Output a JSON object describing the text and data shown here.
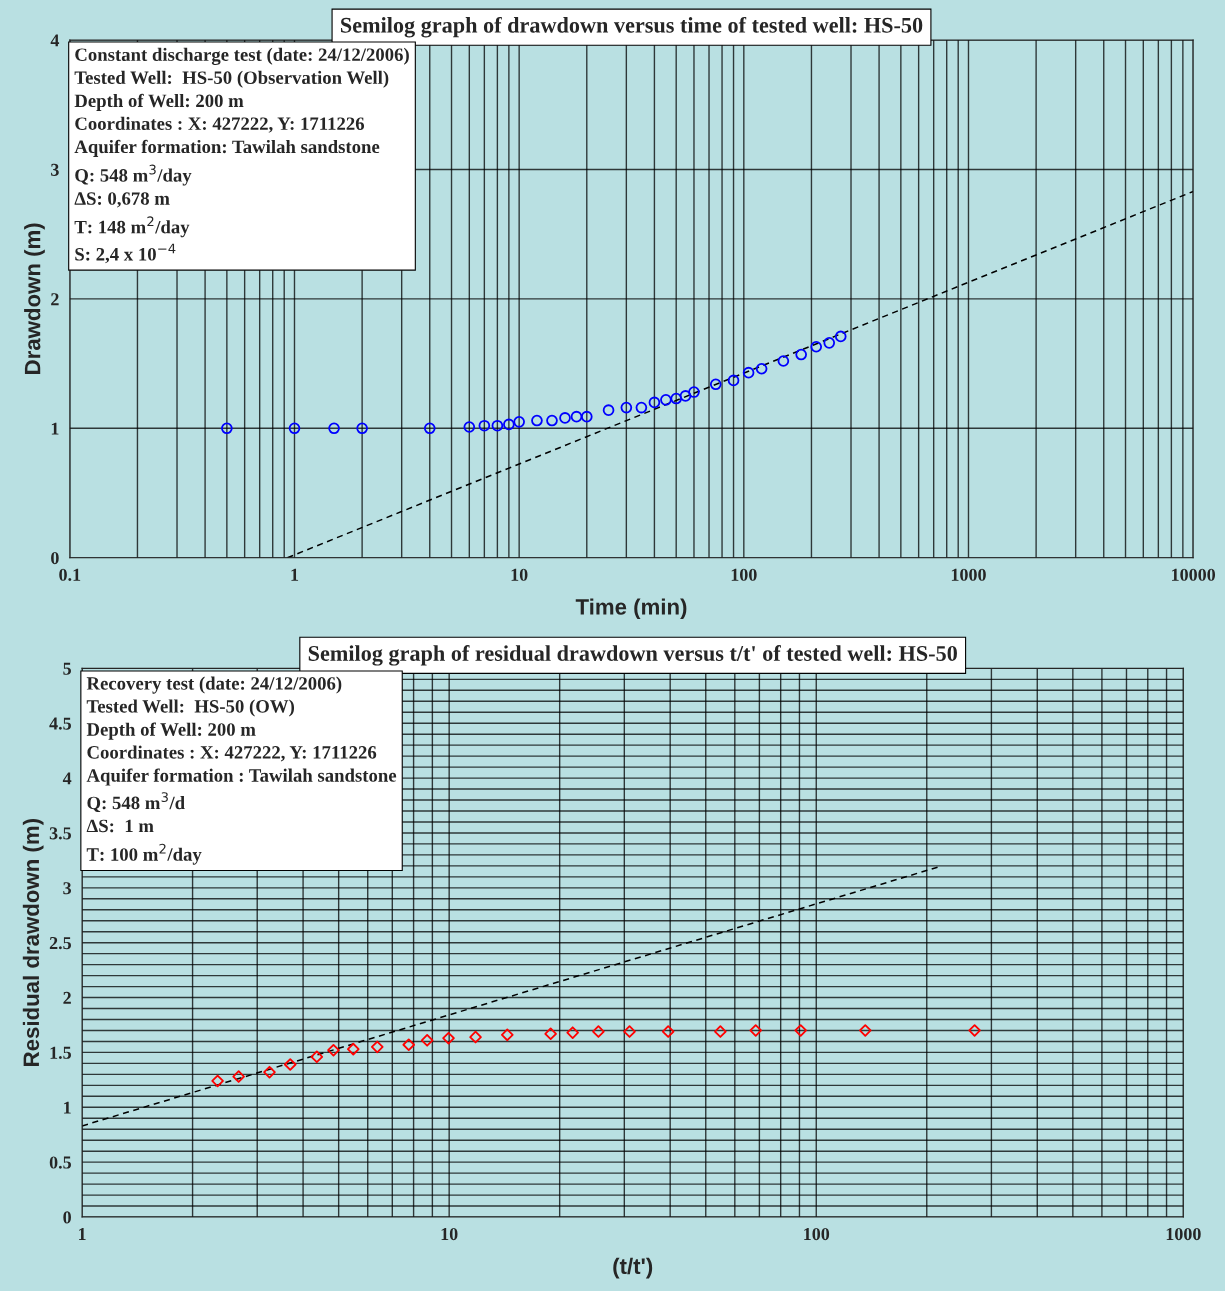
{
  "chart_data": [
    {
      "type": "scatter",
      "title": "Semilog graph of drawdown versus time of tested well: HS-50",
      "xlabel": "Time (min)",
      "ylabel": "Drawdown (m)",
      "annotations": [
        "Constant discharge test (date: 24/12/2006)",
        "Tested Well:  HS-50 (Observation Well)",
        "Depth of Well: 200 m",
        "Coordinates : X: 427222, Y: 1711226",
        "Aquifer formation: Tawilah sandstone",
        "Q: 548 m$^{3}$/day",
        "ΔS: 0,678 m",
        "T: 148 m$^{2}$/day",
        "S: 2,4 x 10$^{−4}$"
      ],
      "log": "x",
      "grid": true,
      "xlim": [
        0.1,
        10000
      ],
      "ylim": [
        0,
        4
      ],
      "yticks": [
        0,
        1,
        2,
        3,
        4
      ],
      "xticks": [
        0.1,
        {
          "value": 0.2,
          "label": null
        },
        {
          "value": 0.3,
          "label": null
        },
        {
          "value": 0.4,
          "label": null
        },
        {
          "value": 0.5,
          "label": null
        },
        {
          "value": 0.6,
          "label": null
        },
        {
          "value": 0.7,
          "label": null
        },
        {
          "value": 0.8,
          "label": null
        },
        {
          "value": 0.9,
          "label": null
        },
        1,
        {
          "value": 2,
          "label": null
        },
        {
          "value": 3,
          "label": null
        },
        {
          "value": 4,
          "label": null
        },
        {
          "value": 5,
          "label": null
        },
        {
          "value": 6,
          "label": null
        },
        {
          "value": 7,
          "label": null
        },
        {
          "value": 8,
          "label": null
        },
        {
          "value": 9,
          "label": null
        },
        10,
        {
          "value": 20,
          "label": null
        },
        {
          "value": 30,
          "label": null
        },
        {
          "value": 40,
          "label": null
        },
        {
          "value": 50,
          "label": null
        },
        {
          "value": 60,
          "label": null
        },
        {
          "value": 70,
          "label": null
        },
        {
          "value": 80,
          "label": null
        },
        {
          "value": 90,
          "label": null
        },
        100,
        {
          "value": 200,
          "label": null
        },
        {
          "value": 300,
          "label": null
        },
        {
          "value": 400,
          "label": null
        },
        {
          "value": 500,
          "label": null
        },
        {
          "value": 600,
          "label": null
        },
        {
          "value": 700,
          "label": null
        },
        {
          "value": 800,
          "label": null
        },
        {
          "value": 900,
          "label": null
        },
        1000,
        {
          "value": 2000,
          "label": null
        },
        {
          "value": 3000,
          "label": null
        },
        {
          "value": 4000,
          "label": null
        },
        {
          "value": 5000,
          "label": null
        },
        {
          "value": 6000,
          "label": null
        },
        {
          "value": 7000,
          "label": null
        },
        {
          "value": 8000,
          "label": null
        },
        {
          "value": 9000,
          "label": null
        },
        10000
      ],
      "series": [
        {
          "color": "#0000ff",
          "marker": "circle",
          "x": [
            0.5,
            1,
            1.5,
            2,
            4,
            6,
            7,
            8,
            9,
            10,
            12,
            14,
            16,
            18,
            20,
            25,
            30,
            35,
            40,
            45,
            50,
            55,
            60,
            75,
            90,
            105,
            120,
            150,
            180,
            210,
            240,
            270
          ],
          "values": [
            1.0,
            1.0,
            1.0,
            1.0,
            1.0,
            1.01,
            1.02,
            1.02,
            1.03,
            1.05,
            1.06,
            1.06,
            1.08,
            1.09,
            1.09,
            1.14,
            1.16,
            1.16,
            1.2,
            1.22,
            1.23,
            1.25,
            1.28,
            1.34,
            1.37,
            1.43,
            1.46,
            1.52,
            1.57,
            1.63,
            1.66,
            1.71
          ]
        },
        {
          "type": "line",
          "color": "#000000",
          "line_style": "dashed",
          "x": [
            0.93,
            10000
          ],
          "values": [
            0,
            2.83
          ]
        }
      ]
    },
    {
      "type": "scatter",
      "title": "Semilog graph of residual drawdown versus t/t' of tested well: HS-50",
      "xlabel": "(t/t')",
      "ylabel": "Residual drawdown (m)",
      "annotations": [
        "Recovery test (date: 24/12/2006)",
        "Tested Well:  HS-50 (OW)",
        "Depth of Well: 200 m",
        "Coordinates : X: 427222, Y: 1711226",
        "Aquifer formation : Tawilah sandstone",
        "Q: 548 m$^{3}$/d",
        "ΔS:  1 m",
        "T: 100 m$^{2}$/day"
      ],
      "log": "x",
      "grid": true,
      "xlim": [
        1,
        1000
      ],
      "ylim": [
        0,
        5
      ],
      "yticks": [
        0,
        {
          "value": 0.1,
          "label": null
        },
        {
          "value": 0.2,
          "label": null
        },
        {
          "value": 0.3,
          "label": null
        },
        {
          "value": 0.4,
          "label": null
        },
        0.5,
        {
          "value": 0.6,
          "label": null
        },
        {
          "value": 0.7,
          "label": null
        },
        {
          "value": 0.8,
          "label": null
        },
        {
          "value": 0.9,
          "label": null
        },
        1,
        {
          "value": 1.1,
          "label": null
        },
        {
          "value": 1.2,
          "label": null
        },
        {
          "value": 1.3,
          "label": null
        },
        {
          "value": 1.4,
          "label": null
        },
        1.5,
        {
          "value": 1.6,
          "label": null
        },
        {
          "value": 1.7,
          "label": null
        },
        {
          "value": 1.8,
          "label": null
        },
        {
          "value": 1.9,
          "label": null
        },
        2,
        {
          "value": 2.1,
          "label": null
        },
        {
          "value": 2.2,
          "label": null
        },
        {
          "value": 2.3,
          "label": null
        },
        {
          "value": 2.4,
          "label": null
        },
        2.5,
        {
          "value": 2.6,
          "label": null
        },
        {
          "value": 2.7,
          "label": null
        },
        {
          "value": 2.8,
          "label": null
        },
        {
          "value": 2.9,
          "label": null
        },
        3,
        {
          "value": 3.1,
          "label": null
        },
        {
          "value": 3.2,
          "label": null
        },
        {
          "value": 3.3,
          "label": null
        },
        {
          "value": 3.4,
          "label": null
        },
        3.5,
        {
          "value": 3.6,
          "label": null
        },
        {
          "value": 3.7,
          "label": null
        },
        {
          "value": 3.8,
          "label": null
        },
        {
          "value": 3.9,
          "label": null
        },
        4,
        {
          "value": 4.1,
          "label": null
        },
        {
          "value": 4.2,
          "label": null
        },
        {
          "value": 4.3,
          "label": null
        },
        {
          "value": 4.4,
          "label": null
        },
        4.5,
        {
          "value": 4.6,
          "label": null
        },
        {
          "value": 4.7,
          "label": null
        },
        {
          "value": 4.8,
          "label": null
        },
        {
          "value": 4.9,
          "label": null
        },
        5
      ],
      "xticks": [
        1,
        {
          "value": 2,
          "label": null
        },
        {
          "value": 3,
          "label": null
        },
        {
          "value": 4,
          "label": null
        },
        {
          "value": 5,
          "label": null
        },
        {
          "value": 6,
          "label": null
        },
        {
          "value": 7,
          "label": null
        },
        {
          "value": 8,
          "label": null
        },
        {
          "value": 9,
          "label": null
        },
        10,
        {
          "value": 20,
          "label": null
        },
        {
          "value": 30,
          "label": null
        },
        {
          "value": 40,
          "label": null
        },
        {
          "value": 50,
          "label": null
        },
        {
          "value": 60,
          "label": null
        },
        {
          "value": 70,
          "label": null
        },
        {
          "value": 80,
          "label": null
        },
        {
          "value": 90,
          "label": null
        },
        100,
        {
          "value": 200,
          "label": null
        },
        {
          "value": 300,
          "label": null
        },
        {
          "value": 400,
          "label": null
        },
        {
          "value": 500,
          "label": null
        },
        {
          "value": 600,
          "label": null
        },
        {
          "value": 700,
          "label": null
        },
        {
          "value": 800,
          "label": null
        },
        {
          "value": 900,
          "label": null
        },
        1000
      ],
      "series": [
        {
          "color": "#ff0000",
          "marker": "diamond",
          "x": [
            2.34,
            2.67,
            3.24,
            3.69,
            4.36,
            4.84,
            5.48,
            6.37,
            7.76,
            8.71,
            9.96,
            11.8,
            14.4,
            18.9,
            21.7,
            25.5,
            31,
            39.5,
            54.8,
            68.4,
            90.7,
            136,
            270
          ],
          "values": [
            1.24,
            1.28,
            1.32,
            1.39,
            1.46,
            1.52,
            1.53,
            1.55,
            1.57,
            1.61,
            1.63,
            1.64,
            1.66,
            1.67,
            1.68,
            1.69,
            1.69,
            1.69,
            1.69,
            1.7,
            1.7,
            1.7,
            1.7
          ]
        },
        {
          "type": "line",
          "color": "#000000",
          "line_style": "dashed",
          "x": [
            1,
            215
          ],
          "values": [
            0.83,
            3.19
          ]
        }
      ]
    }
  ]
}
